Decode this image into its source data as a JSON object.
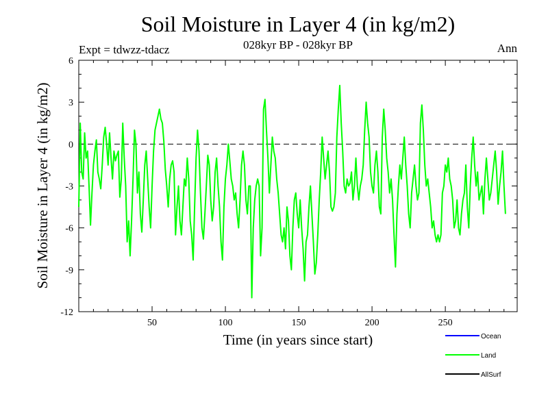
{
  "chart_data": {
    "type": "line",
    "title": "Soil Moisture in Layer 4 (in kg/m2)",
    "subtitle": "028kyr BP - 028kyr BP",
    "experiment": "Expt = tdwzz-tdacz",
    "season": "Ann",
    "xlabel": "Time (in years since start)",
    "ylabel": "Soil Moisture in Layer 4 (in kg/m2)",
    "xlim": [
      0,
      299
    ],
    "ylim": [
      -12,
      6
    ],
    "x_ticks": [
      50,
      100,
      150,
      200,
      250
    ],
    "y_ticks": [
      -12,
      -9,
      -6,
      -3,
      0,
      3,
      6
    ],
    "x_tick_labels": [
      "50",
      "100",
      "150",
      "200",
      "250"
    ],
    "y_tick_labels": [
      "-12",
      "-9",
      "-6",
      "-3",
      "0",
      "3",
      "6"
    ],
    "zero_line": "dashed",
    "legend": [
      {
        "name": "Ocean",
        "color": "#0000ff"
      },
      {
        "name": "Land",
        "color": "#00ff00"
      },
      {
        "name": "AllSurf",
        "color": "#000000"
      }
    ],
    "series": [
      {
        "name": "Land",
        "color": "#00ff00",
        "x_start": 0,
        "x_step": 1,
        "values": [
          -4.5,
          1.5,
          -2.0,
          -2.5,
          0.8,
          -1.0,
          -0.5,
          -3.0,
          -5.8,
          -3.5,
          -1.5,
          -0.5,
          0.3,
          -2.0,
          -2.5,
          -3.2,
          -1.5,
          0.5,
          1.2,
          0.0,
          -1.5,
          0.8,
          -1.0,
          -2.5,
          -0.5,
          -1.2,
          -0.8,
          -0.5,
          -3.8,
          -2.5,
          1.5,
          -1.0,
          -3.0,
          -7.0,
          -5.5,
          -8.0,
          -5.5,
          -2.5,
          1.0,
          0.0,
          -3.5,
          -2.0,
          -5.0,
          -6.3,
          -4.0,
          -1.5,
          -0.5,
          -2.5,
          -4.5,
          -6.0,
          -3.0,
          -0.5,
          1.0,
          1.5,
          2.0,
          2.5,
          1.8,
          1.5,
          0.2,
          -1.8,
          -3.0,
          -4.5,
          -2.5,
          -1.5,
          -1.2,
          -2.0,
          -6.5,
          -4.5,
          -3.0,
          -5.5,
          -6.5,
          -4.5,
          -2.5,
          -3.0,
          -1.0,
          -2.5,
          -5.5,
          -6.5,
          -8.3,
          -4.5,
          -1.0,
          1.0,
          -0.5,
          -3.5,
          -6.0,
          -6.8,
          -5.0,
          -3.0,
          -0.8,
          -1.5,
          -4.0,
          -5.5,
          -4.5,
          -2.0,
          -1.0,
          -3.0,
          -4.5,
          -7.0,
          -8.3,
          -4.5,
          -2.5,
          -1.5,
          0.0,
          -1.2,
          -2.5,
          -3.0,
          -4.0,
          -3.5,
          -5.0,
          -6.0,
          -4.0,
          -1.5,
          -0.5,
          -1.5,
          -4.0,
          -5.0,
          -3.0,
          -3.0,
          -11.0,
          -6.0,
          -4.0,
          -3.0,
          -2.5,
          -3.0,
          -8.0,
          -6.0,
          2.5,
          3.2,
          1.0,
          -1.0,
          -3.5,
          -1.5,
          0.5,
          -0.5,
          -1.0,
          -2.5,
          -3.5,
          -5.0,
          -6.5,
          -7.0,
          -6.0,
          -7.5,
          -4.5,
          -5.5,
          -8.0,
          -9.0,
          -6.0,
          -4.0,
          -3.5,
          -5.0,
          -6.0,
          -4.0,
          -6.0,
          -7.5,
          -9.8,
          -7.0,
          -6.5,
          -4.5,
          -3.0,
          -5.0,
          -7.0,
          -9.3,
          -8.5,
          -6.5,
          -4.0,
          -2.0,
          0.5,
          -1.0,
          -2.5,
          -1.5,
          -0.5,
          -2.0,
          -4.5,
          -4.8,
          -4.5,
          -3.5,
          0.5,
          2.5,
          4.2,
          1.5,
          -0.5,
          -3.0,
          -3.5,
          -2.5,
          -3.0,
          -2.8,
          -2.0,
          -4.0,
          -3.0,
          -1.0,
          -3.0,
          -4.0,
          -3.0,
          -2.5,
          -1.5,
          1.0,
          3.0,
          1.5,
          0.5,
          -2.0,
          -3.0,
          -3.5,
          -1.5,
          -0.5,
          -2.0,
          -4.5,
          -5.0,
          0.5,
          2.5,
          1.0,
          -1.0,
          -2.0,
          -3.5,
          -2.5,
          -4.0,
          -6.5,
          -8.8,
          -5.0,
          -3.0,
          -1.5,
          -2.5,
          -1.0,
          0.5,
          -1.5,
          -3.0,
          -5.0,
          -6.0,
          -3.5,
          -2.5,
          -1.5,
          -3.0,
          -4.0,
          -3.5,
          1.5,
          2.8,
          1.0,
          -1.5,
          -3.0,
          -2.5,
          -3.5,
          -4.5,
          -6.0,
          -5.5,
          -6.5,
          -7.0,
          -6.5,
          -7.0,
          -6.5,
          -3.5,
          -3.0,
          -1.5,
          -2.0,
          -1.0,
          -2.5,
          -3.0,
          -4.0,
          -6.0,
          -5.5,
          -4.0,
          -6.0,
          -6.5,
          -5.0,
          -4.0,
          -3.5,
          -1.5,
          -4.5,
          -6.0,
          -3.0,
          -1.0,
          0.5,
          -1.5,
          -3.0,
          -2.0,
          -4.0,
          -3.5,
          -3.0,
          -5.0,
          -2.5,
          -1.0,
          -2.5,
          -4.0,
          -3.5,
          -2.5,
          -1.5,
          -0.5,
          -2.0,
          -4.3,
          -3.0,
          -2.0,
          -0.5,
          -3.0,
          -5.0
        ]
      }
    ]
  }
}
